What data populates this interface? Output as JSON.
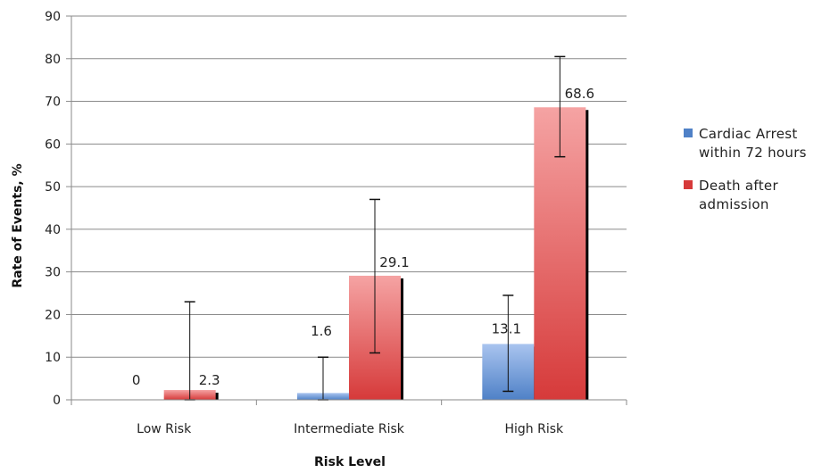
{
  "chart_data": {
    "type": "bar",
    "categories": [
      "Low Risk",
      "Intermediate Risk",
      "High Risk"
    ],
    "series": [
      {
        "name": "Cardiac Arrest within 72 hours",
        "values": [
          0,
          1.6,
          13.1
        ],
        "labels": [
          "0",
          "1.6",
          "13.1"
        ],
        "error_low": [
          null,
          0,
          2
        ],
        "error_high": [
          null,
          10,
          24.5
        ],
        "color": "#4f81c7",
        "color_light": "#a9c4ef"
      },
      {
        "name": "Death after admission",
        "values": [
          2.3,
          29.1,
          68.6
        ],
        "labels": [
          "2.3",
          "29.1",
          "68.6"
        ],
        "error_low": [
          0,
          11,
          57
        ],
        "error_high": [
          23,
          47,
          80.5
        ],
        "color": "#d63a3a",
        "color_light": "#f5a3a3"
      }
    ],
    "xlabel": "Risk Level",
    "ylabel": "Rate of Events, %",
    "ylim": [
      0,
      90
    ],
    "yticks": [
      0,
      10,
      20,
      30,
      40,
      50,
      60,
      70,
      80,
      90
    ],
    "grid": true,
    "legend_position": "right"
  }
}
